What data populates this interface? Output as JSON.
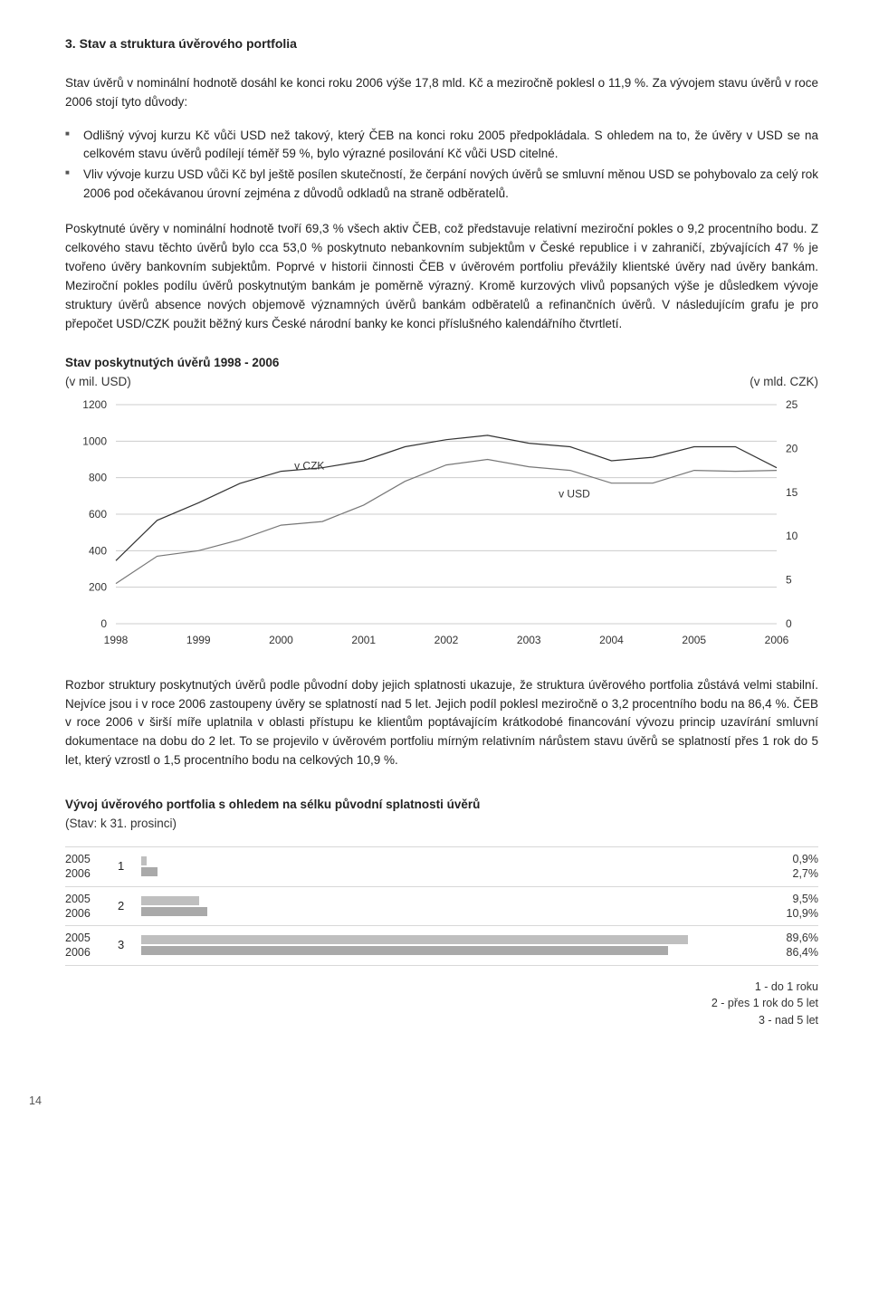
{
  "heading": "3. Stav a struktura úvěrového portfolia",
  "para1": "Stav úvěrů v nominální hodnotě dosáhl ke konci roku 2006 výše 17,8 mld. Kč a meziročně poklesl o 11,9 %. Za vývojem stavu úvěrů v roce 2006 stojí tyto důvody:",
  "bullets": [
    "Odlišný vývoj kurzu Kč vůči USD než takový, který ČEB na konci roku 2005 předpokládala. S ohledem na to, že úvěry v USD se na celkovém stavu úvěrů podílejí téměř 59 %, bylo výrazné posilování Kč vůči USD citelné.",
    "Vliv vývoje kurzu USD vůči Kč byl ještě posílen skutečností, že čerpání nových úvěrů se smluvní měnou USD se pohybovalo za celý rok 2006 pod očekávanou úrovní zejména z důvodů odkladů na straně odběratelů."
  ],
  "para2": "Poskytnuté úvěry v nominální hodnotě tvoří 69,3 % všech aktiv ČEB, což představuje relativní meziroční pokles o 9,2 procentního bodu. Z celkového stavu těchto úvěrů bylo cca 53,0 % poskytnuto nebankovním subjektům v České republice i v zahraničí, zbývajících 47 % je tvořeno úvěry bankovním subjektům. Poprvé v historii činnosti ČEB v úvěrovém portfoliu převážily klientské úvěry nad úvěry bankám. Meziroční pokles podílu úvěrů poskytnutým bankám je poměrně výrazný. Kromě kurzových vlivů popsaných výše je důsledkem vývoje struktury úvěrů absence nových objemově významných úvěrů bankám odběratelů a refinančních úvěrů. V následujícím grafu je pro přepočet USD/CZK použit běžný kurs České národní banky ke konci příslušného kalendářního čtvrtletí.",
  "chart": {
    "title": "Stav poskytnutých úvěrů 1998 - 2006",
    "left_unit": "(v mil. USD)",
    "right_unit": "(v mld. CZK)",
    "label_czk": "v CZK",
    "label_usd": "v USD",
    "y_left": {
      "min": 0,
      "max": 1200,
      "ticks": [
        0,
        200,
        400,
        600,
        800,
        1000,
        1200
      ]
    },
    "y_right": {
      "min": 0,
      "max": 25,
      "ticks": [
        0,
        5,
        10,
        15,
        20,
        25
      ]
    },
    "x_labels": [
      "1998",
      "1999",
      "2000",
      "2001",
      "2002",
      "2003",
      "2004",
      "2005",
      "2006"
    ],
    "series_usd": [
      220,
      370,
      400,
      460,
      540,
      560,
      650,
      780,
      870,
      900,
      860,
      840,
      770,
      770,
      840,
      835,
      840
    ],
    "series_czk": [
      7.2,
      11.8,
      13.8,
      16.0,
      17.4,
      17.8,
      18.6,
      20.2,
      21.0,
      21.5,
      20.6,
      20.2,
      18.6,
      19.0,
      20.2,
      20.2,
      17.8
    ],
    "colors": {
      "line_usd": "#777777",
      "line_czk": "#333333",
      "grid": "#cccccc",
      "axis": "#777777",
      "text": "#333333"
    },
    "stroke_width": 1.2,
    "font_size": 12
  },
  "para3": "Rozbor struktury poskytnutých úvěrů podle původní doby jejich splatnosti ukazuje, že struktura úvěrového portfolia zůstává velmi stabilní. Nejvíce jsou i v roce 2006 zastoupeny úvěry se splatností nad 5 let. Jejich podíl poklesl meziročně o 3,2 procentního bodu na 86,4 %. ČEB v roce 2006 v širší míře uplatnila v oblasti přístupu ke klientům poptávajícím krátkodobé financování vývozu princip uzavírání smluvní dokumentace na dobu do 2 let. To se projevilo v úvěrovém portfoliu mírným relativním nárůstem stavu úvěrů se splatností přes 1 rok do 5 let, který vzrostl o 1,5 procentního bodu na celkových 10,9 %.",
  "maturity": {
    "title": "Vývoj úvěrového portfolia s ohledem na sélku původní splatnosti úvěrů",
    "subtitle": "(Stav: k 31. prosinci)",
    "year_a": "2005",
    "year_b": "2006",
    "bar_color_a": "#bfbfbf",
    "bar_color_b": "#a9a9a9",
    "rows": [
      {
        "num": "1",
        "a": 0.9,
        "b": 2.7,
        "a_label": "0,9%",
        "b_label": "2,7%"
      },
      {
        "num": "2",
        "a": 9.5,
        "b": 10.9,
        "a_label": "9,5%",
        "b_label": "10,9%"
      },
      {
        "num": "3",
        "a": 89.6,
        "b": 86.4,
        "a_label": "89,6%",
        "b_label": "86,4%"
      }
    ],
    "legend": [
      "1 - do 1 roku",
      "2 - přes 1 rok do 5 let",
      "3 - nad 5 let"
    ]
  },
  "page_number": "14"
}
